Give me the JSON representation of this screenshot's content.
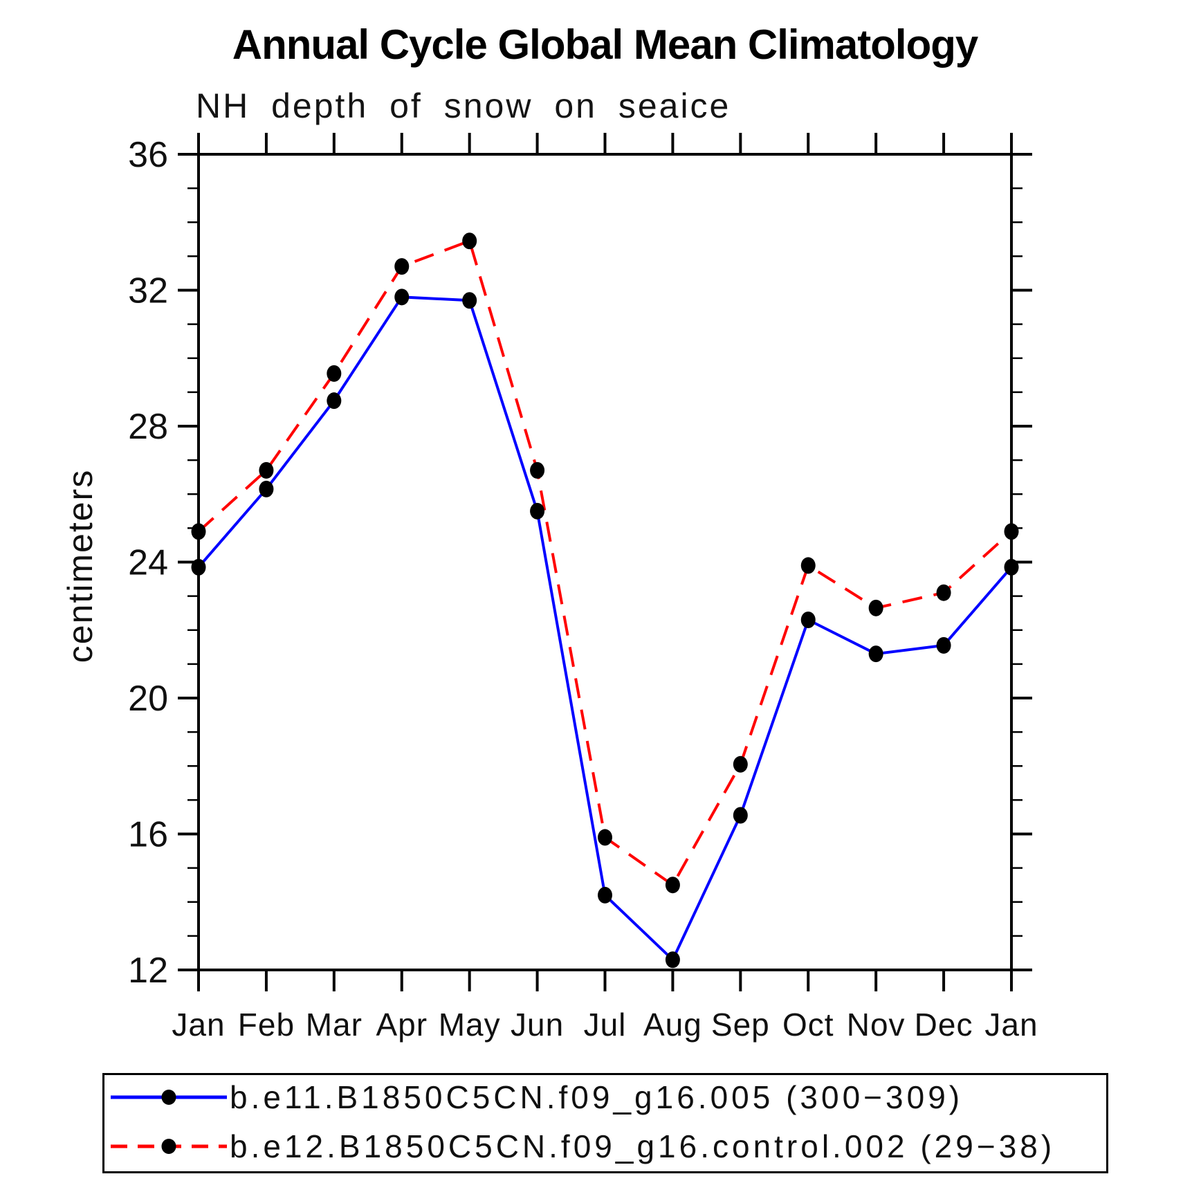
{
  "title": "Annual Cycle Global Mean Climatology",
  "subtitle": "NH depth of snow on seaice",
  "ylabel": "centimeters",
  "chart_data": {
    "type": "line",
    "categories": [
      "Jan",
      "Feb",
      "Mar",
      "Apr",
      "May",
      "Jun",
      "Jul",
      "Aug",
      "Sep",
      "Oct",
      "Nov",
      "Dec",
      "Jan"
    ],
    "series": [
      {
        "name": "b.e11.B1850C5CN.f09_g16.005 (300−309)",
        "color": "#0000ff",
        "style": "solid",
        "marker": "filled-circle",
        "marker_color": "#000000",
        "values": [
          23.85,
          26.15,
          28.75,
          31.8,
          31.7,
          25.5,
          14.2,
          12.3,
          16.55,
          22.3,
          21.3,
          21.55,
          23.85
        ]
      },
      {
        "name": "b.e12.B1850C5CN.f09_g16.control.002 (29−38)",
        "color": "#ff0000",
        "style": "dashed",
        "marker": "filled-circle",
        "marker_color": "#000000",
        "values": [
          24.9,
          26.7,
          29.55,
          32.7,
          33.45,
          26.7,
          15.9,
          14.5,
          18.05,
          23.9,
          22.65,
          23.1,
          24.9
        ]
      }
    ],
    "xlabel": "",
    "ylim": [
      12,
      36
    ],
    "y_ticks": [
      12,
      16,
      20,
      24,
      28,
      32,
      36
    ],
    "y_minor_step": 1,
    "grid": false,
    "legend_position": "bottom",
    "frame_color": "#000000"
  }
}
